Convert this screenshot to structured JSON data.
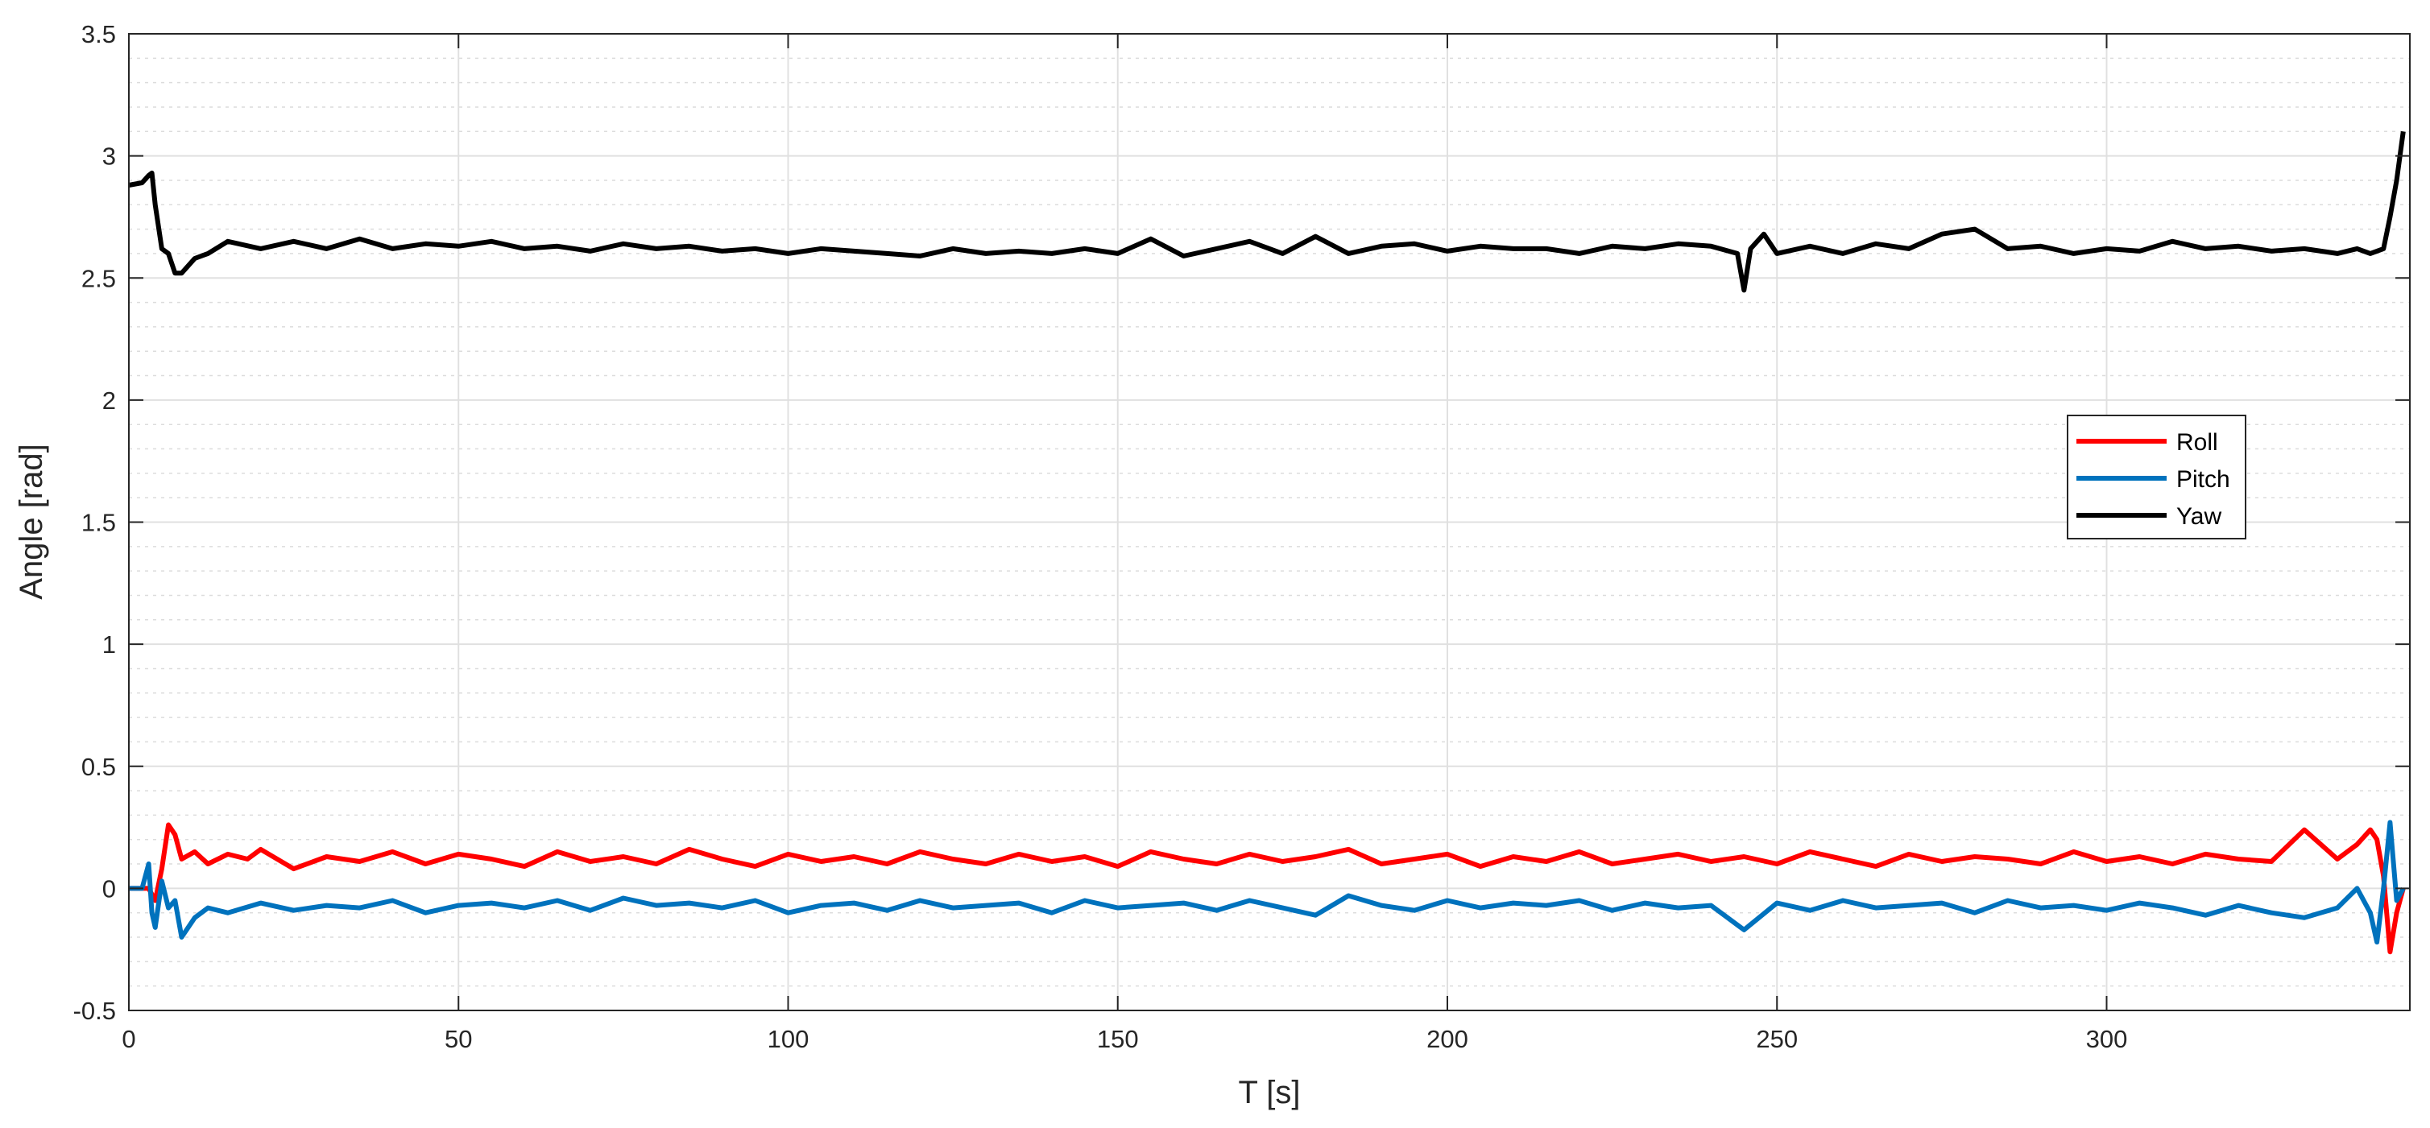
{
  "chart_data": {
    "type": "line",
    "title": "",
    "xlabel": "T [s]",
    "ylabel": "Angle [rad]",
    "xlim": [
      0,
      346
    ],
    "ylim": [
      -0.5,
      3.5
    ],
    "xticks": [
      0,
      50,
      100,
      150,
      200,
      250,
      300
    ],
    "xtick_labels": [
      "0",
      "50",
      "100",
      "150",
      "200",
      "250",
      "300"
    ],
    "yticks": [
      -0.5,
      0,
      0.5,
      1,
      1.5,
      2,
      2.5,
      3,
      3.5
    ],
    "ytick_labels": [
      "-0.5",
      "0",
      "0.5",
      "1",
      "1.5",
      "2",
      "2.5",
      "3",
      "3.5"
    ],
    "grid": {
      "major": true,
      "minor": true
    },
    "legend_position": "right",
    "series": [
      {
        "name": "Roll",
        "color": "#ff0000",
        "x": [
          0,
          3,
          4,
          5,
          6,
          7,
          8,
          10,
          12,
          15,
          18,
          20,
          25,
          30,
          35,
          40,
          45,
          50,
          55,
          60,
          65,
          70,
          75,
          80,
          85,
          90,
          95,
          100,
          105,
          110,
          115,
          120,
          125,
          130,
          135,
          140,
          145,
          150,
          155,
          160,
          165,
          170,
          175,
          180,
          185,
          190,
          195,
          200,
          205,
          210,
          215,
          220,
          225,
          230,
          235,
          240,
          245,
          250,
          255,
          260,
          265,
          270,
          275,
          280,
          285,
          290,
          295,
          300,
          305,
          310,
          315,
          320,
          325,
          330,
          335,
          338,
          340,
          341,
          342,
          343,
          344,
          345
        ],
        "y": [
          0,
          0,
          -0.05,
          0.08,
          0.26,
          0.22,
          0.12,
          0.15,
          0.1,
          0.14,
          0.12,
          0.16,
          0.08,
          0.13,
          0.11,
          0.15,
          0.1,
          0.14,
          0.12,
          0.09,
          0.15,
          0.11,
          0.13,
          0.1,
          0.16,
          0.12,
          0.09,
          0.14,
          0.11,
          0.13,
          0.1,
          0.15,
          0.12,
          0.1,
          0.14,
          0.11,
          0.13,
          0.09,
          0.15,
          0.12,
          0.1,
          0.14,
          0.11,
          0.13,
          0.16,
          0.1,
          0.12,
          0.14,
          0.09,
          0.13,
          0.11,
          0.15,
          0.1,
          0.12,
          0.14,
          0.11,
          0.13,
          0.1,
          0.15,
          0.12,
          0.09,
          0.14,
          0.11,
          0.13,
          0.12,
          0.1,
          0.15,
          0.11,
          0.13,
          0.1,
          0.14,
          0.12,
          0.11,
          0.24,
          0.12,
          0.18,
          0.24,
          0.2,
          0.05,
          -0.26,
          -0.1,
          0.0
        ]
      },
      {
        "name": "Pitch",
        "color": "#0072bd",
        "x": [
          0,
          2,
          3,
          3.5,
          4,
          5,
          6,
          7,
          8,
          10,
          12,
          15,
          20,
          25,
          30,
          35,
          40,
          45,
          50,
          55,
          60,
          65,
          70,
          75,
          80,
          85,
          90,
          95,
          100,
          105,
          110,
          115,
          120,
          125,
          130,
          135,
          140,
          145,
          150,
          155,
          160,
          165,
          170,
          175,
          180,
          185,
          190,
          195,
          200,
          205,
          210,
          215,
          220,
          225,
          230,
          235,
          240,
          245,
          250,
          255,
          260,
          265,
          270,
          275,
          280,
          285,
          290,
          295,
          300,
          305,
          310,
          315,
          320,
          325,
          330,
          335,
          338,
          340,
          341,
          342,
          343,
          344,
          345
        ],
        "y": [
          0,
          0,
          0.1,
          -0.1,
          -0.16,
          0.03,
          -0.08,
          -0.05,
          -0.2,
          -0.12,
          -0.08,
          -0.1,
          -0.06,
          -0.09,
          -0.07,
          -0.08,
          -0.05,
          -0.1,
          -0.07,
          -0.06,
          -0.08,
          -0.05,
          -0.09,
          -0.04,
          -0.07,
          -0.06,
          -0.08,
          -0.05,
          -0.1,
          -0.07,
          -0.06,
          -0.09,
          -0.05,
          -0.08,
          -0.07,
          -0.06,
          -0.1,
          -0.05,
          -0.08,
          -0.07,
          -0.06,
          -0.09,
          -0.05,
          -0.08,
          -0.11,
          -0.03,
          -0.07,
          -0.09,
          -0.05,
          -0.08,
          -0.06,
          -0.07,
          -0.05,
          -0.09,
          -0.06,
          -0.08,
          -0.07,
          -0.17,
          -0.06,
          -0.09,
          -0.05,
          -0.08,
          -0.07,
          -0.06,
          -0.1,
          -0.05,
          -0.08,
          -0.07,
          -0.09,
          -0.06,
          -0.08,
          -0.11,
          -0.07,
          -0.1,
          -0.12,
          -0.08,
          0.0,
          -0.1,
          -0.22,
          0.0,
          0.27,
          -0.05,
          0.0
        ]
      },
      {
        "name": "Yaw",
        "color": "#000000",
        "x": [
          0,
          2,
          3,
          3.5,
          4,
          5,
          6,
          7,
          8,
          10,
          12,
          15,
          20,
          25,
          30,
          35,
          40,
          45,
          50,
          55,
          60,
          65,
          70,
          75,
          80,
          85,
          90,
          95,
          100,
          105,
          110,
          115,
          120,
          125,
          130,
          135,
          140,
          145,
          150,
          155,
          160,
          165,
          170,
          175,
          180,
          185,
          190,
          195,
          200,
          205,
          210,
          215,
          220,
          225,
          230,
          235,
          240,
          244,
          245,
          246,
          248,
          250,
          255,
          260,
          265,
          270,
          275,
          280,
          285,
          290,
          295,
          300,
          305,
          310,
          315,
          320,
          325,
          330,
          335,
          338,
          340,
          342,
          343,
          344,
          345
        ],
        "y": [
          2.88,
          2.89,
          2.92,
          2.93,
          2.8,
          2.62,
          2.6,
          2.52,
          2.52,
          2.58,
          2.6,
          2.65,
          2.62,
          2.65,
          2.62,
          2.66,
          2.62,
          2.64,
          2.63,
          2.65,
          2.62,
          2.63,
          2.61,
          2.64,
          2.62,
          2.63,
          2.61,
          2.62,
          2.6,
          2.62,
          2.61,
          2.6,
          2.59,
          2.62,
          2.6,
          2.61,
          2.6,
          2.62,
          2.6,
          2.66,
          2.59,
          2.62,
          2.65,
          2.6,
          2.67,
          2.6,
          2.63,
          2.64,
          2.61,
          2.63,
          2.62,
          2.62,
          2.6,
          2.63,
          2.62,
          2.64,
          2.63,
          2.6,
          2.45,
          2.62,
          2.68,
          2.6,
          2.63,
          2.6,
          2.64,
          2.62,
          2.68,
          2.7,
          2.62,
          2.63,
          2.6,
          2.62,
          2.61,
          2.65,
          2.62,
          2.63,
          2.61,
          2.62,
          2.6,
          2.62,
          2.6,
          2.62,
          2.75,
          2.9,
          3.1
        ]
      }
    ]
  }
}
